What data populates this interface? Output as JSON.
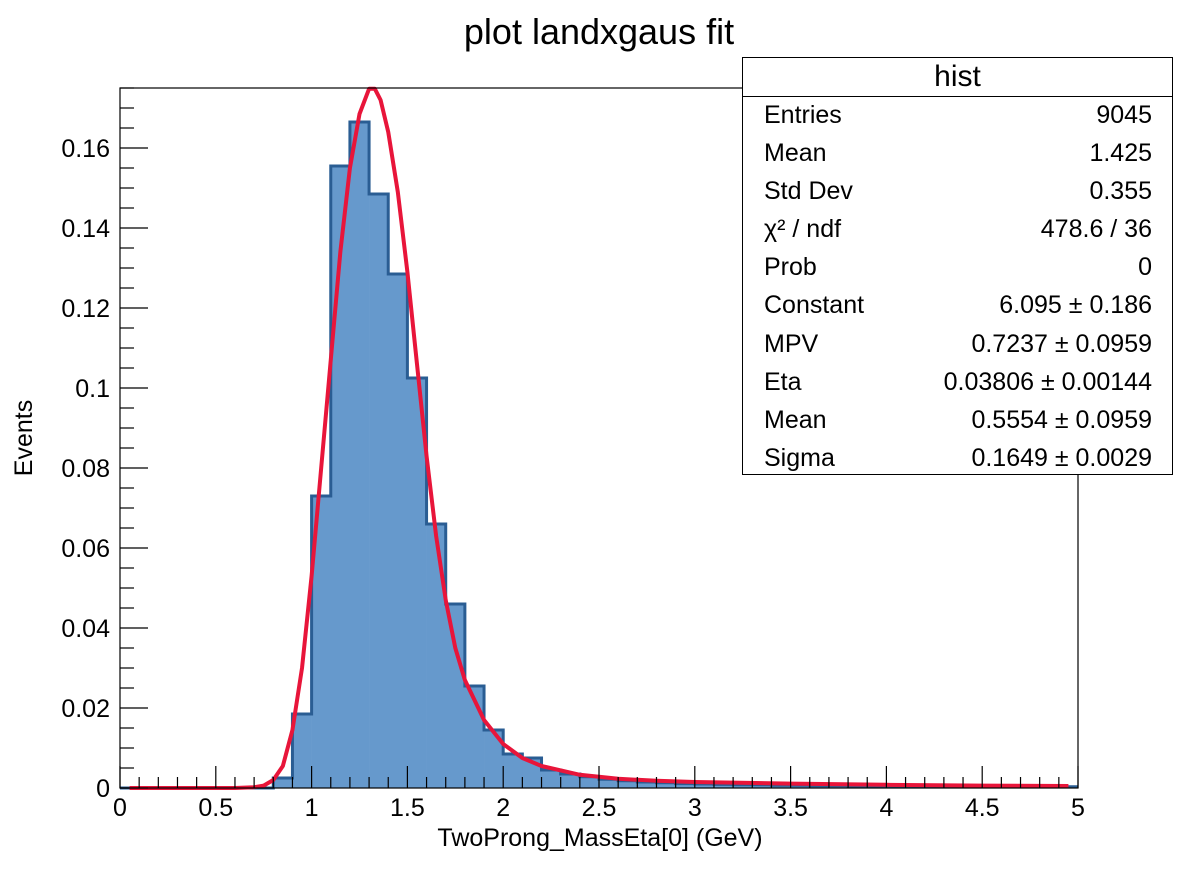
{
  "chart_data": {
    "type": "bar",
    "title": "plot landxgaus fit",
    "xlabel": "TwoProng_MassEta[0] (GeV)",
    "ylabel": "Events",
    "xlim": [
      0,
      5
    ],
    "ylim": [
      0,
      0.175
    ],
    "x_ticks": [
      "0",
      "0.5",
      "1",
      "1.5",
      "2",
      "2.5",
      "3",
      "3.5",
      "4",
      "4.5",
      "5"
    ],
    "y_ticks": [
      "0",
      "0.02",
      "0.04",
      "0.06",
      "0.08",
      "0.1",
      "0.12",
      "0.14",
      "0.16"
    ],
    "histogram": {
      "name": "hist",
      "bin_width": 0.1,
      "bin_low_edges": [
        0.0,
        0.1,
        0.2,
        0.3,
        0.4,
        0.5,
        0.6,
        0.7,
        0.8,
        0.9,
        1.0,
        1.1,
        1.2,
        1.3,
        1.4,
        1.5,
        1.6,
        1.7,
        1.8,
        1.9,
        2.0,
        2.1,
        2.2,
        2.3,
        2.4,
        2.5,
        2.6,
        2.7,
        2.8,
        2.9,
        3.0,
        3.1,
        3.2,
        3.3,
        3.4,
        3.5,
        3.6,
        3.7,
        3.8,
        3.9,
        4.0,
        4.1,
        4.2,
        4.3,
        4.4,
        4.5,
        4.6,
        4.7,
        4.8,
        4.9
      ],
      "values": [
        0,
        0,
        0,
        0,
        0,
        0,
        0,
        0,
        0.0025,
        0.0185,
        0.073,
        0.1555,
        0.1665,
        0.1485,
        0.1285,
        0.1025,
        0.066,
        0.046,
        0.0255,
        0.0145,
        0.0085,
        0.0075,
        0.0045,
        0.0035,
        0.0028,
        0.0022,
        0.0018,
        0.0015,
        0.0013,
        0.0011,
        0.001,
        0.0009,
        0.0008,
        0.0008,
        0.0007,
        0.0007,
        0.0006,
        0.0006,
        0.0005,
        0.0005,
        0.0005,
        0.0005,
        0.0004,
        0.0004,
        0.0004,
        0.0004,
        0.0003,
        0.0003,
        0.0003,
        0.0003
      ],
      "fill_color": "#6699cc",
      "line_color": "#2a5d93"
    },
    "fit_curve": {
      "x": [
        0.05,
        0.6,
        0.7,
        0.75,
        0.8,
        0.85,
        0.9,
        0.95,
        1.0,
        1.05,
        1.1,
        1.15,
        1.2,
        1.25,
        1.3,
        1.33,
        1.36,
        1.4,
        1.45,
        1.5,
        1.55,
        1.6,
        1.65,
        1.7,
        1.75,
        1.8,
        1.9,
        2.0,
        2.1,
        2.2,
        2.4,
        2.6,
        2.8,
        3.0,
        3.5,
        4.0,
        4.5,
        4.95
      ],
      "y": [
        0,
        0,
        0.0002,
        0.0006,
        0.002,
        0.0055,
        0.0145,
        0.03,
        0.053,
        0.08,
        0.107,
        0.134,
        0.155,
        0.1685,
        0.1748,
        0.1748,
        0.172,
        0.164,
        0.149,
        0.129,
        0.106,
        0.083,
        0.063,
        0.047,
        0.035,
        0.027,
        0.017,
        0.011,
        0.0075,
        0.0055,
        0.0033,
        0.0023,
        0.0018,
        0.0015,
        0.0011,
        0.0008,
        0.0006,
        0.0005
      ],
      "color": "#e8153a"
    }
  },
  "stats": {
    "title": "hist",
    "rows": [
      {
        "label": "Entries",
        "value": "9045"
      },
      {
        "label": "Mean",
        "value": "1.425"
      },
      {
        "label": "Std Dev",
        "value": "0.355"
      },
      {
        "label": "χ² / ndf",
        "value": "478.6 / 36"
      },
      {
        "label": "Prob",
        "value": "0"
      },
      {
        "label": "Constant",
        "value": "6.095 ± 0.186"
      },
      {
        "label": "MPV",
        "value": "0.7237 ± 0.0959"
      },
      {
        "label": "Eta",
        "value": "0.03806 ± 0.00144"
      },
      {
        "label": "Mean",
        "value": "0.5554 ± 0.0959"
      },
      {
        "label": "Sigma",
        "value": "0.1649 ± 0.0029"
      }
    ]
  }
}
